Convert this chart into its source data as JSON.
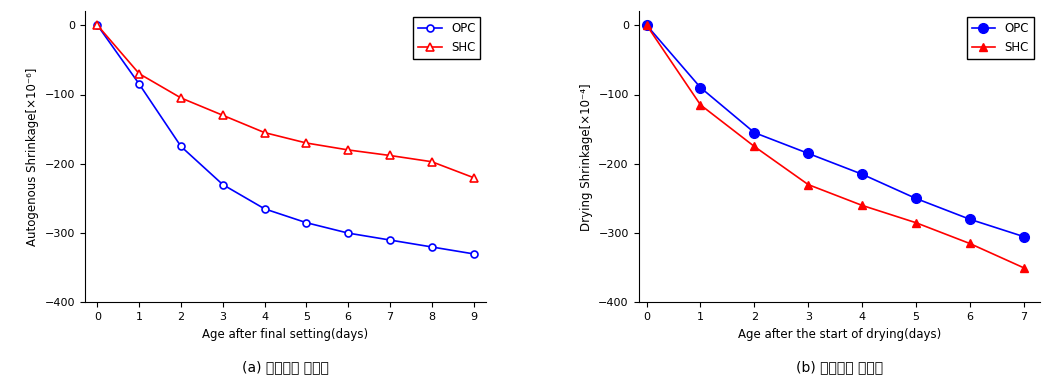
{
  "left_opc_x": [
    0,
    1,
    2,
    3,
    4,
    5,
    6,
    7,
    8,
    9
  ],
  "left_opc_y": [
    0,
    -85,
    -175,
    -230,
    -265,
    -285,
    -300,
    -310,
    -320,
    -330
  ],
  "left_shc_x": [
    0,
    1,
    2,
    3,
    4,
    5,
    6,
    7,
    8,
    9
  ],
  "left_shc_y": [
    0,
    -70,
    -105,
    -130,
    -155,
    -170,
    -180,
    -188,
    -197,
    -220
  ],
  "right_opc_x": [
    0,
    1,
    2,
    3,
    4,
    5,
    6,
    7
  ],
  "right_opc_y": [
    0,
    -90,
    -155,
    -185,
    -215,
    -250,
    -280,
    -305
  ],
  "right_shc_x": [
    0,
    1,
    2,
    3,
    4,
    5,
    6,
    7
  ],
  "right_shc_y": [
    0,
    -115,
    -175,
    -230,
    -260,
    -285,
    -315,
    -350
  ],
  "left_xlabel": "Age after final setting(days)",
  "left_ylabel": "Autogenous Shrinkage[×10⁻⁶]",
  "right_xlabel": "Age after the start of drying(days)",
  "right_ylabel": "Drying Shrinkage[×10⁻⁴]",
  "left_caption": "(a) 자기수축 변형률",
  "right_caption": "(b) 건조수축 변형률",
  "ylim": [
    -400,
    20
  ],
  "left_xlim": [
    -0.3,
    9.3
  ],
  "right_xlim": [
    -0.15,
    7.3
  ],
  "opc_color": "#0000ff",
  "shc_color": "#ff0000",
  "bg_color": "#ffffff"
}
